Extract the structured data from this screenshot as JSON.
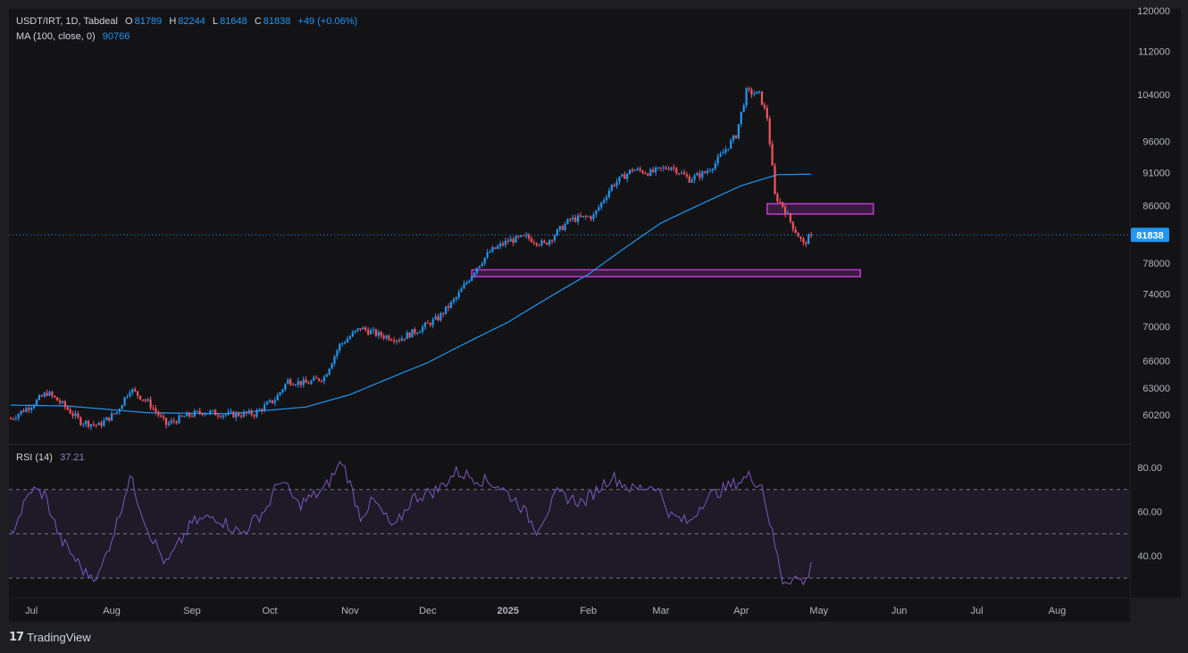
{
  "legend": {
    "symbol": "USDT/IRT, 1D, Tabdeal",
    "o_label": "O",
    "o": "81789",
    "h_label": "H",
    "h": "82244",
    "l_label": "L",
    "l": "81648",
    "c_label": "C",
    "c": "81838",
    "change": "+49 (+0.06%)",
    "ma_label": "MA (100, close, 0)",
    "ma_value": "90766",
    "rsi_label": "RSI (14)",
    "rsi_value": "37.21"
  },
  "footer": {
    "brand": "TradingView"
  },
  "colors": {
    "up": "#2196f3",
    "down": "#f7525f",
    "ma": "#2196f3",
    "rsi": "#7e57c2",
    "zone": "#c239d3",
    "price_line": "#2196f3"
  },
  "chart_data": {
    "type": "candlestick",
    "price_axis_ticks": [
      120000,
      112000,
      104000,
      96000,
      91000,
      86000,
      78000,
      74000,
      70000,
      66000,
      63000,
      60200
    ],
    "price_range": [
      57500,
      120000
    ],
    "rsi_axis_ticks": [
      "80.00",
      "60.00",
      "40.00"
    ],
    "rsi_levels": [
      70,
      50,
      30
    ],
    "x_labels": [
      "Jul",
      "Aug",
      "Sep",
      "Oct",
      "Nov",
      "Dec",
      "2025",
      "Feb",
      "Mar",
      "Apr",
      "May",
      "Jun",
      "Jul",
      "Aug"
    ],
    "current_price": 81838,
    "current_price_label": "81838",
    "zones": [
      {
        "from_date": "2025-04-11",
        "to_date": "2025-05-22",
        "low": 84800,
        "high": 86300
      },
      {
        "from_date": "2024-12-18",
        "to_date": "2025-05-17",
        "low": 76200,
        "high": 77100
      }
    ],
    "close_anchors": [
      [
        "2024-06-23",
        59800
      ],
      [
        "2024-07-01",
        61200
      ],
      [
        "2024-07-07",
        62500
      ],
      [
        "2024-07-12",
        61500
      ],
      [
        "2024-07-20",
        59500
      ],
      [
        "2024-07-27",
        59100
      ],
      [
        "2024-08-03",
        60500
      ],
      [
        "2024-08-08",
        62900
      ],
      [
        "2024-08-15",
        61500
      ],
      [
        "2024-08-22",
        59200
      ],
      [
        "2024-08-29",
        60000
      ],
      [
        "2024-09-05",
        60500
      ],
      [
        "2024-09-15",
        60200
      ],
      [
        "2024-09-25",
        60300
      ],
      [
        "2024-10-03",
        61800
      ],
      [
        "2024-10-08",
        63800
      ],
      [
        "2024-10-15",
        63500
      ],
      [
        "2024-10-22",
        64200
      ],
      [
        "2024-10-28",
        67800
      ],
      [
        "2024-11-05",
        69800
      ],
      [
        "2024-11-12",
        69000
      ],
      [
        "2024-11-20",
        68500
      ],
      [
        "2024-11-28",
        69700
      ],
      [
        "2024-12-05",
        71000
      ],
      [
        "2024-12-12",
        73500
      ],
      [
        "2024-12-20",
        77500
      ],
      [
        "2024-12-25",
        79500
      ],
      [
        "2025-01-01",
        81000
      ],
      [
        "2025-01-08",
        81500
      ],
      [
        "2025-01-15",
        80500
      ],
      [
        "2025-01-25",
        84000
      ],
      [
        "2025-02-03",
        84500
      ],
      [
        "2025-02-10",
        89000
      ],
      [
        "2025-02-18",
        91500
      ],
      [
        "2025-02-25",
        91000
      ],
      [
        "2025-03-05",
        92000
      ],
      [
        "2025-03-12",
        90000
      ],
      [
        "2025-03-18",
        91000
      ],
      [
        "2025-03-22",
        92500
      ],
      [
        "2025-03-30",
        97000
      ],
      [
        "2025-04-03",
        104500
      ],
      [
        "2025-04-08",
        104000
      ],
      [
        "2025-04-11",
        100000
      ],
      [
        "2025-04-14",
        87500
      ],
      [
        "2025-04-17",
        86000
      ],
      [
        "2025-04-21",
        83000
      ],
      [
        "2025-04-25",
        80500
      ],
      [
        "2025-04-28",
        81838
      ]
    ],
    "ma_anchors": [
      [
        "2024-06-23",
        61200
      ],
      [
        "2024-07-15",
        61100
      ],
      [
        "2024-08-15",
        60400
      ],
      [
        "2024-09-15",
        60300
      ],
      [
        "2024-10-15",
        61000
      ],
      [
        "2024-11-01",
        62300
      ],
      [
        "2024-12-01",
        65800
      ],
      [
        "2025-01-01",
        70500
      ],
      [
        "2025-02-01",
        76500
      ],
      [
        "2025-03-01",
        83500
      ],
      [
        "2025-04-01",
        89000
      ],
      [
        "2025-04-15",
        90700
      ],
      [
        "2025-04-28",
        90766
      ]
    ],
    "rsi_anchors": [
      [
        "2024-06-23",
        50
      ],
      [
        "2024-07-01",
        70
      ],
      [
        "2024-07-06",
        68
      ],
      [
        "2024-07-12",
        48
      ],
      [
        "2024-07-22",
        32
      ],
      [
        "2024-07-27",
        31
      ],
      [
        "2024-08-03",
        55
      ],
      [
        "2024-08-08",
        76
      ],
      [
        "2024-08-15",
        52
      ],
      [
        "2024-08-22",
        36
      ],
      [
        "2024-09-01",
        55
      ],
      [
        "2024-09-10",
        58
      ],
      [
        "2024-09-20",
        50
      ],
      [
        "2024-09-30",
        62
      ],
      [
        "2024-10-05",
        75
      ],
      [
        "2024-10-12",
        63
      ],
      [
        "2024-10-22",
        70
      ],
      [
        "2024-10-29",
        83
      ],
      [
        "2024-11-05",
        58
      ],
      [
        "2024-11-10",
        65
      ],
      [
        "2024-11-18",
        52
      ],
      [
        "2024-11-25",
        66
      ],
      [
        "2024-12-05",
        70
      ],
      [
        "2024-12-12",
        78
      ],
      [
        "2024-12-20",
        75
      ],
      [
        "2024-12-28",
        72
      ],
      [
        "2025-01-05",
        64
      ],
      [
        "2025-01-12",
        52
      ],
      [
        "2025-01-20",
        68
      ],
      [
        "2025-01-30",
        64
      ],
      [
        "2025-02-10",
        76
      ],
      [
        "2025-02-18",
        70
      ],
      [
        "2025-02-27",
        72
      ],
      [
        "2025-03-05",
        58
      ],
      [
        "2025-03-12",
        55
      ],
      [
        "2025-03-18",
        66
      ],
      [
        "2025-03-25",
        70
      ],
      [
        "2025-04-04",
        76
      ],
      [
        "2025-04-09",
        72
      ],
      [
        "2025-04-13",
        50
      ],
      [
        "2025-04-17",
        29
      ],
      [
        "2025-04-22",
        30
      ],
      [
        "2025-04-26",
        28
      ],
      [
        "2025-04-28",
        37.21
      ]
    ]
  }
}
